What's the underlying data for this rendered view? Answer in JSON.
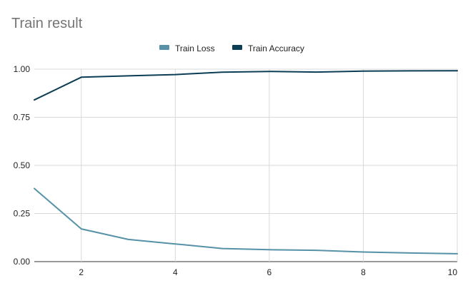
{
  "chart_data": {
    "type": "line",
    "title": "Train result",
    "xlabel": "",
    "ylabel": "",
    "x": [
      1,
      2,
      3,
      4,
      5,
      6,
      7,
      8,
      9,
      10
    ],
    "xlim": [
      1,
      10
    ],
    "ylim": [
      0,
      1
    ],
    "x_ticks": [
      2,
      4,
      6,
      8,
      10
    ],
    "x_tick_labels": [
      "2",
      "4",
      "6",
      "8",
      "10"
    ],
    "y_ticks": [
      0,
      0.25,
      0.5,
      0.75,
      1
    ],
    "y_tick_labels": [
      "0.00",
      "0.25",
      "0.50",
      "0.75",
      "1.00"
    ],
    "grid": true,
    "legend_position": "top",
    "series": [
      {
        "name": "Train Loss",
        "color": "#5592a8",
        "values": [
          0.38,
          0.17,
          0.115,
          0.092,
          0.068,
          0.062,
          0.059,
          0.05,
          0.045,
          0.041
        ]
      },
      {
        "name": "Train Accuracy",
        "color": "#0b3d54",
        "values": [
          0.84,
          0.958,
          0.965,
          0.972,
          0.984,
          0.988,
          0.985,
          0.99,
          0.991,
          0.992
        ]
      }
    ]
  }
}
